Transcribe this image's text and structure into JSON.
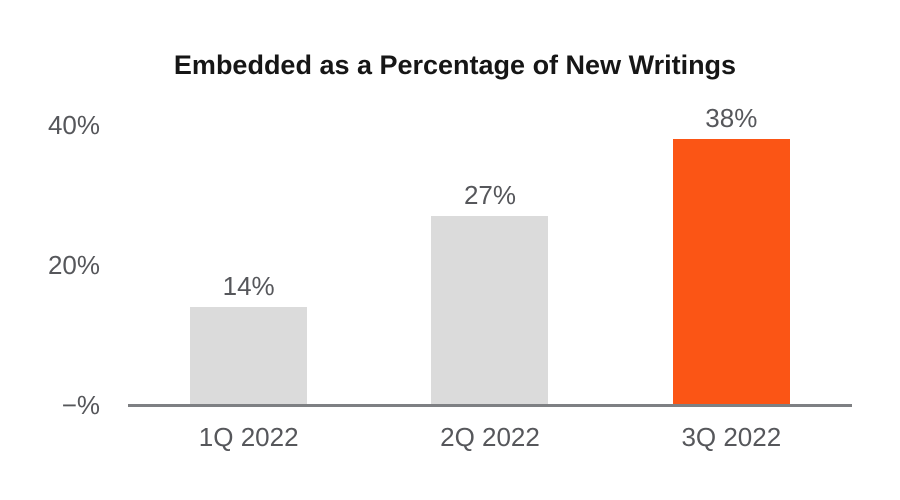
{
  "chart_data": {
    "type": "bar",
    "title": "Embedded as a Percentage of New Writings",
    "categories": [
      "1Q 2022",
      "2Q 2022",
      "3Q 2022"
    ],
    "values": [
      14,
      27,
      38
    ],
    "value_labels": [
      "14%",
      "27%",
      "38%"
    ],
    "y_ticks": [
      {
        "label": "40%",
        "value": 40
      },
      {
        "label": "20%",
        "value": 20
      },
      {
        "label": "−%",
        "value": 0
      }
    ],
    "ylim": [
      0,
      40
    ],
    "xlabel": "",
    "ylabel": "",
    "grid": false,
    "legend": false,
    "bar_colors": [
      "#dbdbdb",
      "#dbdbdb",
      "#fb5515"
    ],
    "highlight_color": "#fb5515",
    "bar_default_color": "#dbdbdb",
    "text_color": "#56575b",
    "title_color": "#161616",
    "axis_color": "#7e8083",
    "background_color": "#ffffff"
  }
}
